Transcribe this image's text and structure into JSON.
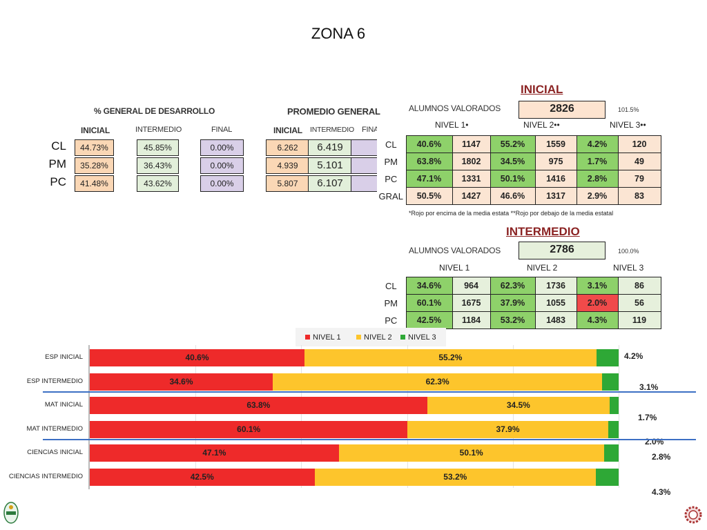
{
  "page": {
    "title": "ZONA 6"
  },
  "desarrollo": {
    "title": "% GENERAL DE DESARROLLO",
    "cols": [
      "INICIAL",
      "INTERMEDIO",
      "FINAL"
    ],
    "rows": [
      {
        "label": "CL",
        "inicial": "44.73%",
        "intermedio": "45.85%",
        "final": "0.00%"
      },
      {
        "label": "PM",
        "inicial": "35.28%",
        "intermedio": "36.43%",
        "final": "0.00%"
      },
      {
        "label": "PC",
        "inicial": "41.48%",
        "intermedio": "43.62%",
        "final": "0.00%"
      }
    ]
  },
  "promedio": {
    "title": "PROMEDIO GENERAL",
    "cols": [
      "INICIAL",
      "INTERMEDIO",
      "FINA"
    ],
    "rows": [
      {
        "inicial": "6.262",
        "intermedio": "6.419"
      },
      {
        "inicial": "4.939",
        "intermedio": "5.101"
      },
      {
        "inicial": "5.807",
        "intermedio": "6.107"
      }
    ]
  },
  "inicial": {
    "section_title": "INICIAL",
    "alumnos_label": "ALUMNOS VALORADOS",
    "alumnos_value": "2826",
    "pct": "101.5%",
    "levels": [
      "NIVEL 1•",
      "NIVEL 2••",
      "NIVEL 3••"
    ],
    "rows": [
      {
        "label": "CL",
        "v": [
          "40.6%",
          "1147",
          "55.2%",
          "1559",
          "4.2%",
          "120"
        ]
      },
      {
        "label": "PM",
        "v": [
          "63.8%",
          "1802",
          "34.5%",
          "975",
          "1.7%",
          "49"
        ]
      },
      {
        "label": "PC",
        "v": [
          "47.1%",
          "1331",
          "50.1%",
          "1416",
          "2.8%",
          "79"
        ]
      },
      {
        "label": "GRAL",
        "v": [
          "50.5%",
          "1427",
          "46.6%",
          "1317",
          "2.9%",
          "83"
        ]
      }
    ],
    "note": "*Rojo por encima de la media estata **Rojo por debajo de  la media estatal"
  },
  "intermedio": {
    "section_title": "INTERMEDIO",
    "alumnos_label": "ALUMNOS VALORADOS",
    "alumnos_value": "2786",
    "pct": "100.0%",
    "levels": [
      "NIVEL 1",
      "NIVEL 2",
      "NIVEL 3"
    ],
    "rows": [
      {
        "label": "CL",
        "v": [
          "34.6%",
          "964",
          "62.3%",
          "1736",
          "3.1%",
          "86"
        ]
      },
      {
        "label": "PM",
        "v": [
          "60.1%",
          "1675",
          "37.9%",
          "1055",
          "2.0%",
          "56"
        ]
      },
      {
        "label": "PC",
        "v": [
          "42.5%",
          "1184",
          "53.2%",
          "1483",
          "4.3%",
          "119"
        ]
      }
    ]
  },
  "chart_data": {
    "type": "bar",
    "orientation": "horizontal",
    "stacked": true,
    "categories": [
      "ESP INICIAL",
      "ESP INTERMEDIO",
      "MAT INICIAL",
      "MAT INTERMEDIO",
      "CIENCIAS INICIAL",
      "CIENCIAS INTERMEDIO"
    ],
    "series": [
      {
        "name": "NIVEL 1",
        "values": [
          40.6,
          34.6,
          63.8,
          60.1,
          47.1,
          42.5
        ],
        "labels": [
          "40.6%",
          "34.6%",
          "63.8%",
          "60.1%",
          "47.1%",
          "42.5%"
        ],
        "color": "#ee2a2a"
      },
      {
        "name": "NIVEL 2",
        "values": [
          55.2,
          62.3,
          34.5,
          37.9,
          50.1,
          53.2
        ],
        "labels": [
          "55.2%",
          "62.3%",
          "34.5%",
          "37.9%",
          "50.1%",
          "53.2%"
        ],
        "color": "#fdc52c"
      },
      {
        "name": "NIVEL 3",
        "values": [
          4.2,
          3.1,
          1.7,
          2.0,
          2.8,
          4.3
        ],
        "labels": [
          "4.2%",
          "3.1%",
          "1.7%",
          "2.0%",
          "2.8%",
          "4.3%"
        ],
        "color": "#2ea836"
      }
    ],
    "xlim": [
      0,
      100
    ],
    "legend": "top",
    "grid": true
  }
}
